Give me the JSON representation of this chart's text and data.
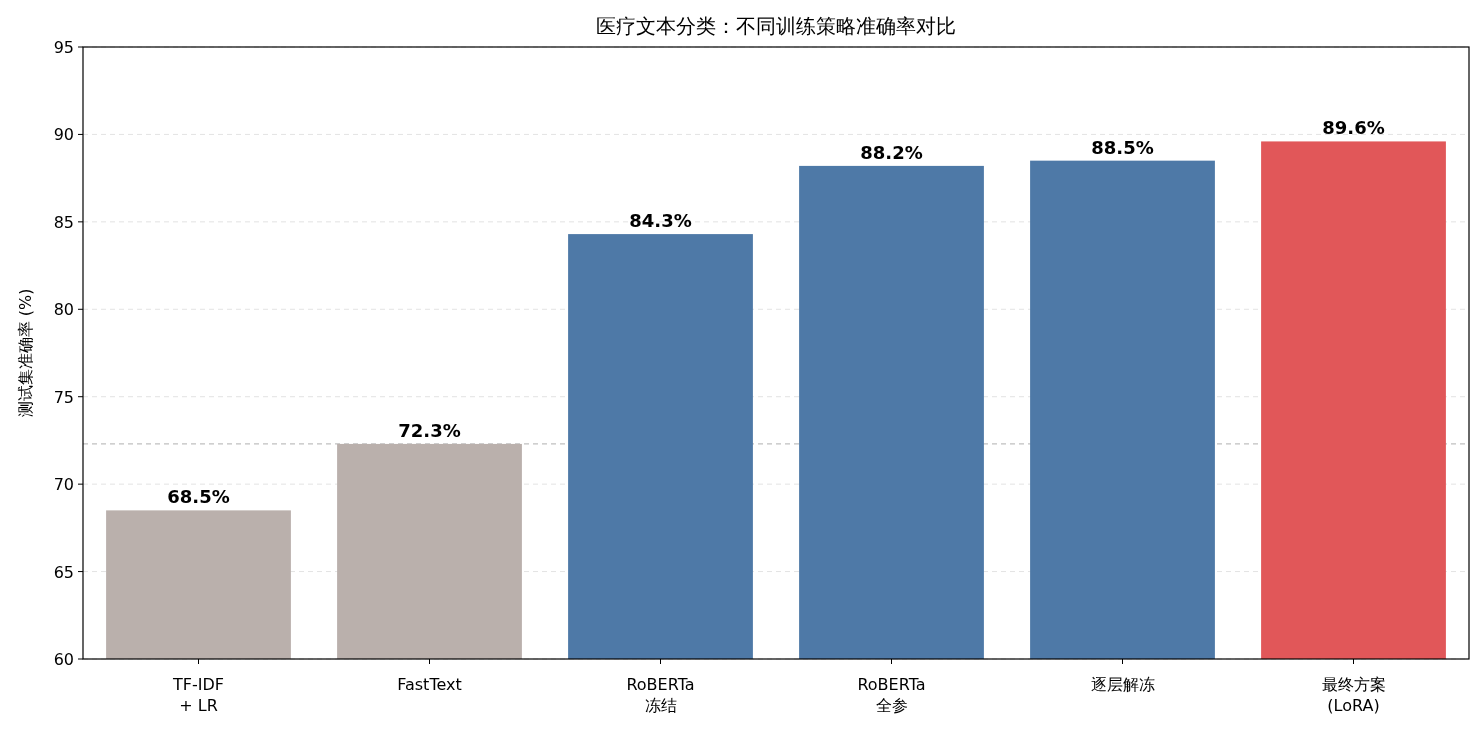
{
  "chart_data": {
    "type": "bar",
    "title": "医疗文本分类：不同训练策略准确率对比",
    "ylabel": "测试集准确率 (%)",
    "categories": [
      "TF-IDF\n+ LR",
      "FastText",
      "RoBERTa\n冻结",
      "RoBERTa\n全参",
      "逐层解冻",
      "最终方案\n(LoRA)"
    ],
    "values": [
      68.5,
      72.3,
      84.3,
      88.2,
      88.5,
      89.6
    ],
    "colors": [
      "#bab0ac",
      "#bab0ac",
      "#4e79a7",
      "#4e79a7",
      "#4e79a7",
      "#e15759"
    ],
    "value_labels": [
      "68.5%",
      "72.3%",
      "84.3%",
      "88.2%",
      "88.5%",
      "89.6%"
    ],
    "ylim": [
      60,
      95
    ],
    "yticks": [
      60,
      65,
      70,
      75,
      80,
      85,
      90,
      95
    ],
    "grid": "y",
    "ref_lines": [
      {
        "axis": "y",
        "value": 72.3,
        "color": "#c0c0c0",
        "line_style": "dashed"
      }
    ]
  }
}
